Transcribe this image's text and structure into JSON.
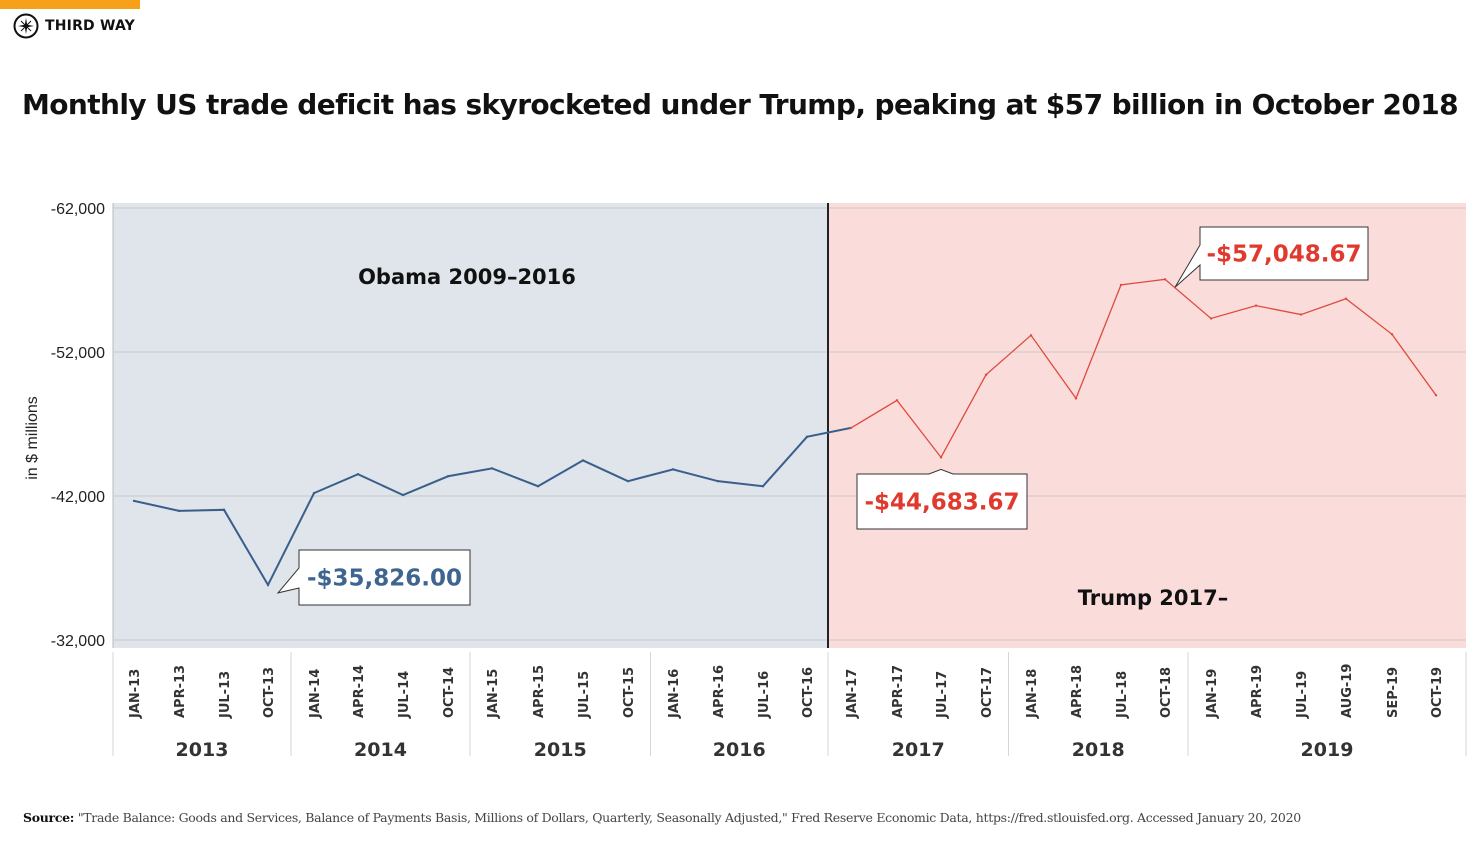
{
  "header": {
    "logo_text": "THIRD WAY",
    "accent_color": "#f7a11a"
  },
  "title": "Monthly US trade deficit has skyrocketed under Trump, peaking at $57 billion in October 2018",
  "source": {
    "label": "Source:",
    "text": "\"Trade Balance: Goods and Services, Balance of Payments Basis, Millions of Dollars, Quarterly, Seasonally Adjusted,\" Fred Reserve Economic Data, https://fred.stlouisfed.org. Accessed January 20, 2020"
  },
  "chart_data": {
    "type": "line",
    "ylabel": "in $ millions",
    "ylim": [
      -32000,
      -62000
    ],
    "y_inverted": true,
    "yticks": [
      "-62,000",
      "-52,000",
      "-42,000",
      "-32,000"
    ],
    "ytick_values": [
      -62000,
      -52000,
      -42000,
      -32000
    ],
    "grid": true,
    "categories": [
      "JAN-13",
      "APR-13",
      "JUL-13",
      "OCT-13",
      "JAN-14",
      "APR-14",
      "JUL-14",
      "OCT-14",
      "JAN-15",
      "APR-15",
      "JUL-15",
      "OCT-15",
      "JAN-16",
      "APR-16",
      "JUL-16",
      "OCT-16",
      "JAN-17",
      "APR-17",
      "JUL-17",
      "OCT-17",
      "JAN-18",
      "APR-18",
      "JUL-18",
      "OCT-18",
      "JAN-19",
      "APR-19",
      "JUL-19",
      "AUG-19",
      "SEP-19",
      "OCT-19"
    ],
    "year_groups": [
      {
        "year": "2013",
        "count": 4
      },
      {
        "year": "2014",
        "count": 4
      },
      {
        "year": "2015",
        "count": 4
      },
      {
        "year": "2016",
        "count": 4
      },
      {
        "year": "2017",
        "count": 4
      },
      {
        "year": "2018",
        "count": 4
      },
      {
        "year": "2019",
        "count": 6
      }
    ],
    "values": [
      -41660,
      -40970,
      -41040,
      -35826,
      -42200,
      -43510,
      -42070,
      -43370,
      -43920,
      -42680,
      -44470,
      -43030,
      -43850,
      -43030,
      -42680,
      -46110,
      -46730,
      -48640,
      -44683.67,
      -50420,
      -53160,
      -48780,
      -56660,
      -57048.67,
      -54330,
      -55220,
      -54600,
      -55700,
      -53230,
      -49000
    ],
    "periods": [
      {
        "label": "Obama 2009–2016",
        "from": "JAN-13",
        "to": "JAN-17",
        "line_color": "#3a5f8c",
        "fill_color": "#dfe5ea"
      },
      {
        "label": "Trump 2017–",
        "from": "JAN-17",
        "to": "OCT-19",
        "line_color": "#e04a3c",
        "fill_color": "#fadcdb"
      }
    ],
    "annotations": [
      {
        "category": "OCT-13",
        "text": "-$35,826.00",
        "color": "#3e6591"
      },
      {
        "category": "JUL-17",
        "text": "-$44,683.67",
        "color": "#e0392e"
      },
      {
        "category": "OCT-18",
        "text": "-$57,048.67",
        "color": "#e0392e"
      }
    ]
  }
}
